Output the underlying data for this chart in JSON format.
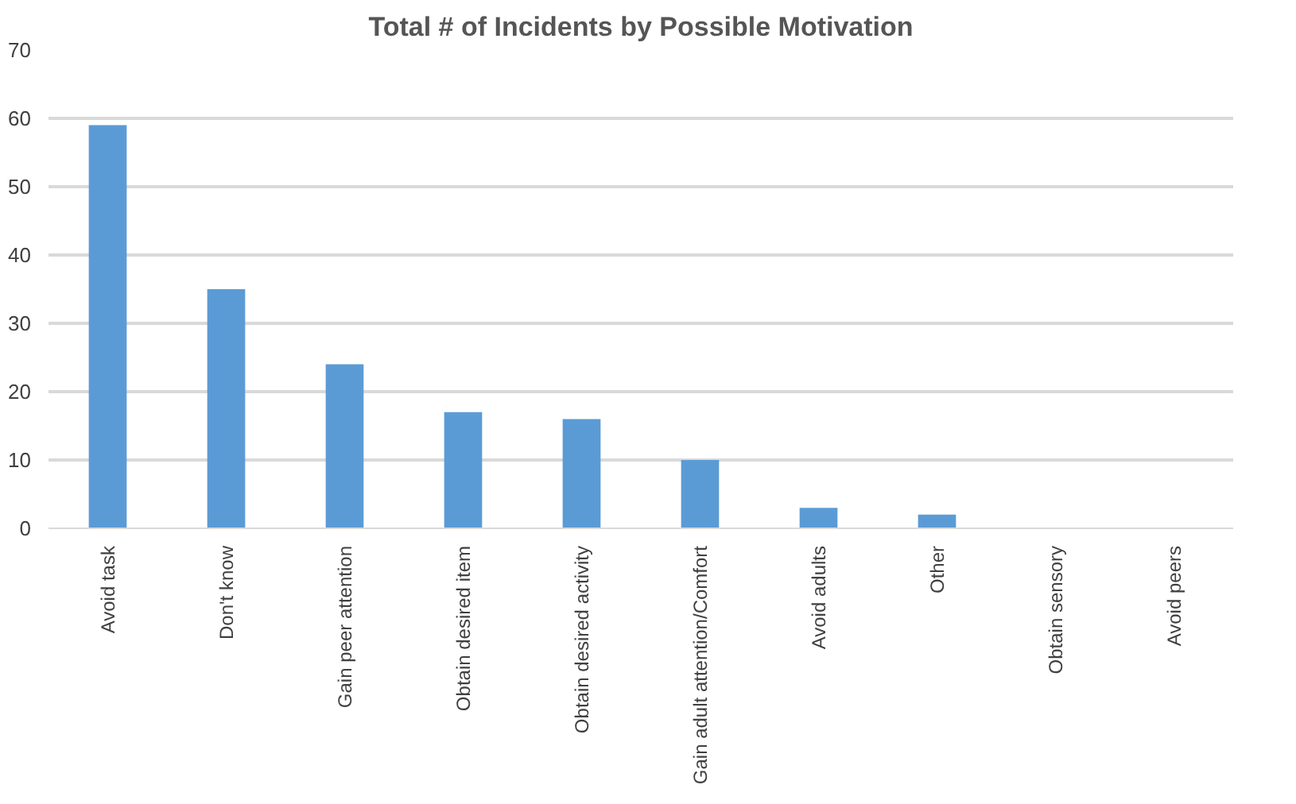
{
  "chart_data": {
    "type": "bar",
    "title": "Total # of Incidents by Possible Motivation",
    "categories": [
      "Avoid task",
      "Don't know",
      "Gain peer attention",
      "Obtain desired item",
      "Obtain desired activity",
      "Gain adult attention/Comfort",
      "Avoid adults",
      "Other",
      "Obtain sensory",
      "Avoid peers"
    ],
    "values": [
      59,
      35,
      24,
      17,
      16,
      10,
      3,
      2,
      0,
      0
    ],
    "color": "#5b9bd5",
    "ylim": [
      0,
      70
    ],
    "yticks": [
      0,
      10,
      20,
      30,
      40,
      50,
      60,
      70
    ],
    "grid": "y"
  }
}
